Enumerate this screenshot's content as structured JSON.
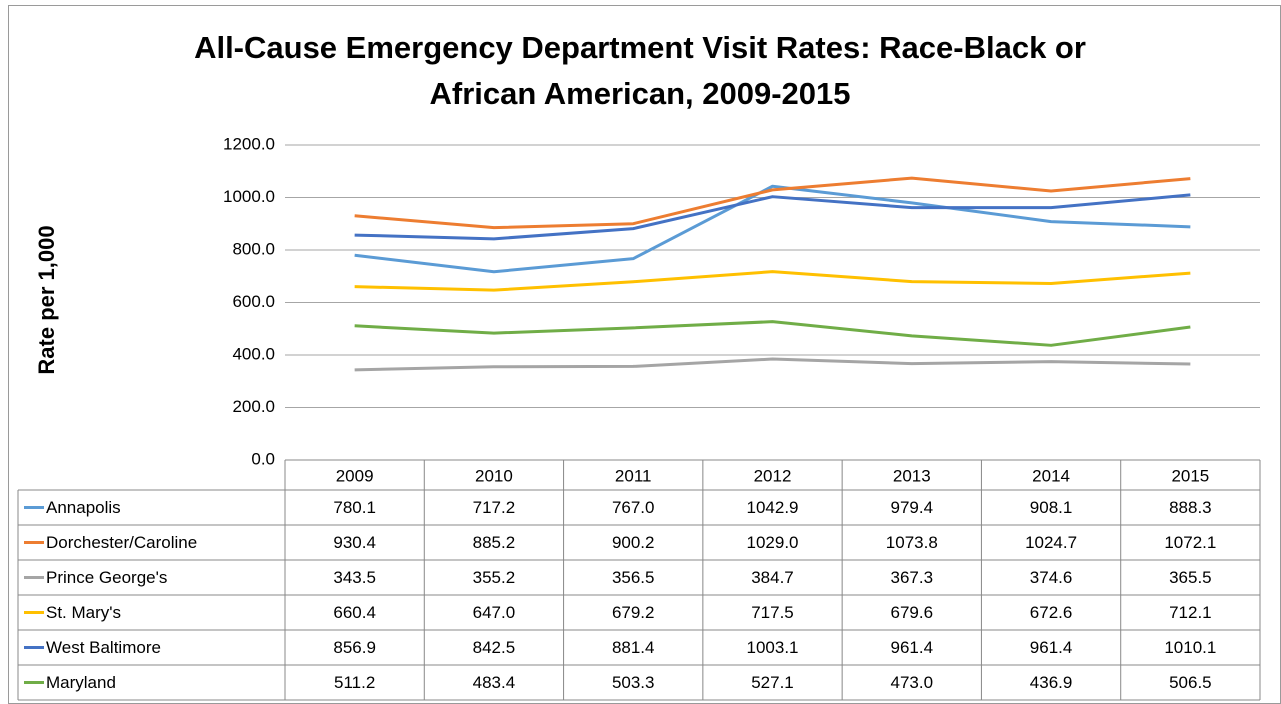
{
  "chart_data": {
    "type": "line",
    "title": [
      "All-Cause Emergency Department Visit Rates: Race-Black or",
      "African American, 2009-2015"
    ],
    "y_label": "Rate per 1,000",
    "categories": [
      "2009",
      "2010",
      "2011",
      "2012",
      "2013",
      "2014",
      "2015"
    ],
    "ylim": [
      0,
      1200
    ],
    "yticks": [
      {
        "value": 0,
        "label": "0.0"
      },
      {
        "value": 200,
        "label": "200.0"
      },
      {
        "value": 400,
        "label": "400.0"
      },
      {
        "value": 600,
        "label": "600.0"
      },
      {
        "value": 800,
        "label": "800.0"
      },
      {
        "value": 1000,
        "label": "1000.0"
      },
      {
        "value": 1200,
        "label": "1200.0"
      }
    ],
    "grid": true,
    "series": [
      {
        "name": "Annapolis",
        "color": "#5b9bd5",
        "values": [
          780.1,
          717.2,
          767.0,
          1042.9,
          979.4,
          908.1,
          888.3
        ],
        "value_labels": [
          "780.1",
          "717.2",
          "767.0",
          "1042.9",
          "979.4",
          "908.1",
          "888.3"
        ]
      },
      {
        "name": "Dorchester/Caroline",
        "color": "#ed7d31",
        "values": [
          930.4,
          885.2,
          900.2,
          1029.0,
          1073.8,
          1024.7,
          1072.1
        ],
        "value_labels": [
          "930.4",
          "885.2",
          "900.2",
          "1029.0",
          "1073.8",
          "1024.7",
          "1072.1"
        ]
      },
      {
        "name": "Prince George's",
        "color": "#a5a5a5",
        "values": [
          343.5,
          355.2,
          356.5,
          384.7,
          367.3,
          374.6,
          365.5
        ],
        "value_labels": [
          "343.5",
          "355.2",
          "356.5",
          "384.7",
          "367.3",
          "374.6",
          "365.5"
        ]
      },
      {
        "name": "St. Mary's",
        "color": "#ffc000",
        "values": [
          660.4,
          647.0,
          679.2,
          717.5,
          679.6,
          672.6,
          712.1
        ],
        "value_labels": [
          "660.4",
          "647.0",
          "679.2",
          "717.5",
          "679.6",
          "672.6",
          "712.1"
        ]
      },
      {
        "name": "West Baltimore",
        "color": "#4472c4",
        "values": [
          856.9,
          842.5,
          881.4,
          1003.1,
          961.4,
          961.4,
          1010.1
        ],
        "value_labels": [
          "856.9",
          "842.5",
          "881.4",
          "1003.1",
          "961.4",
          "961.4",
          "1010.1"
        ]
      },
      {
        "name": "Maryland",
        "color": "#70ad47",
        "values": [
          511.2,
          483.4,
          503.3,
          527.1,
          473.0,
          436.9,
          506.5
        ],
        "value_labels": [
          "511.2",
          "483.4",
          "503.3",
          "527.1",
          "473.0",
          "436.9",
          "506.5"
        ]
      }
    ]
  }
}
